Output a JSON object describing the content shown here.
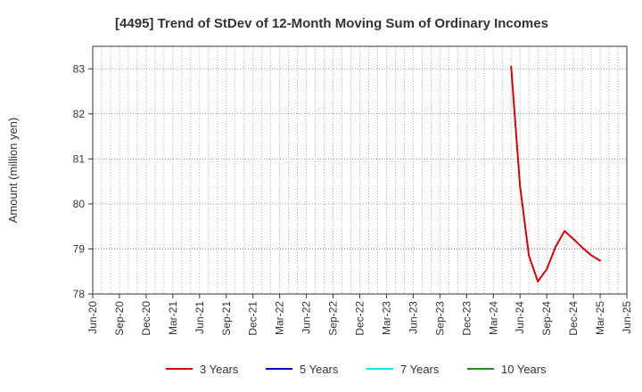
{
  "chart_data": {
    "type": "line",
    "title": "[4495]  Trend of StDev of 12-Month Moving Sum of Ordinary Incomes",
    "xlabel": "",
    "ylabel": "Amount (million yen)",
    "ylim": [
      78,
      83.5
    ],
    "yticks": [
      78,
      79,
      80,
      81,
      82,
      83
    ],
    "xlim": [
      "2020-06",
      "2025-06"
    ],
    "xtick_labels": [
      "Jun-20",
      "Sep-20",
      "Dec-20",
      "Mar-21",
      "Jun-21",
      "Sep-21",
      "Dec-21",
      "Mar-22",
      "Jun-22",
      "Sep-22",
      "Dec-22",
      "Mar-23",
      "Jun-23",
      "Sep-23",
      "Dec-23",
      "Mar-24",
      "Jun-24",
      "Sep-24",
      "Dec-24",
      "Mar-25",
      "Jun-25"
    ],
    "grid": true,
    "legend_position": "bottom",
    "series": [
      {
        "name": "3 Years",
        "color": "#dd0000",
        "points": [
          {
            "x": "2024-05",
            "y": 83.05
          },
          {
            "x": "2024-06",
            "y": 80.4
          },
          {
            "x": "2024-07",
            "y": 78.85
          },
          {
            "x": "2024-08",
            "y": 78.28
          },
          {
            "x": "2024-09",
            "y": 78.55
          },
          {
            "x": "2024-10",
            "y": 79.05
          },
          {
            "x": "2024-11",
            "y": 79.4
          },
          {
            "x": "2024-12",
            "y": 79.22
          },
          {
            "x": "2025-01",
            "y": 79.03
          },
          {
            "x": "2025-02",
            "y": 78.86
          },
          {
            "x": "2025-03",
            "y": 78.74
          }
        ]
      },
      {
        "name": "5 Years",
        "color": "#0000cc",
        "points": []
      },
      {
        "name": "7 Years",
        "color": "#00e5ee",
        "points": []
      },
      {
        "name": "10 Years",
        "color": "#228b22",
        "points": []
      }
    ]
  }
}
